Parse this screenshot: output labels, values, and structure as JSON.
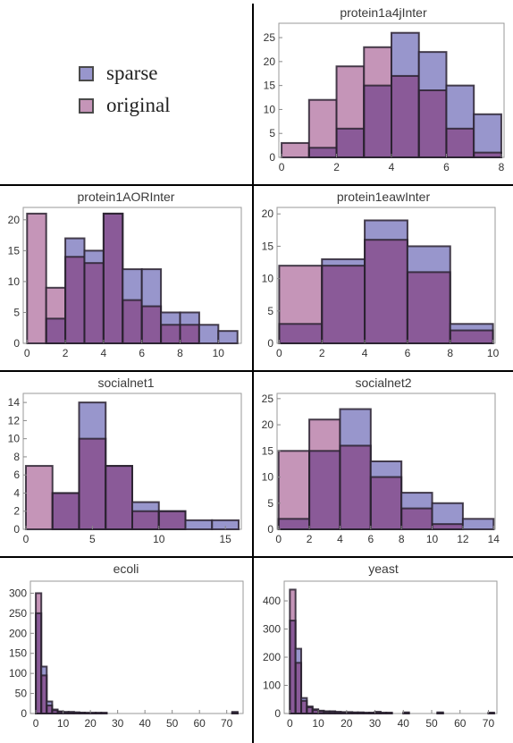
{
  "legend": [
    {
      "label": "sparse",
      "color": "#9896cc"
    },
    {
      "label": "original",
      "color": "#c595b8"
    }
  ],
  "colors": {
    "sparse": "#9896cc",
    "original": "#c595b8",
    "overlap": "#8a5a98",
    "edge": "#2a2230"
  },
  "chart_data": [
    {
      "type": "bar",
      "title": "protein1a4jInter",
      "bins": [
        [
          0,
          1
        ],
        [
          1,
          2
        ],
        [
          2,
          3
        ],
        [
          3,
          4
        ],
        [
          4,
          5
        ],
        [
          5,
          6
        ],
        [
          6,
          7
        ],
        [
          7,
          8
        ]
      ],
      "series": [
        {
          "name": "sparse",
          "values": [
            0,
            2,
            6,
            15,
            26,
            22,
            15,
            9
          ]
        },
        {
          "name": "original",
          "values": [
            3,
            12,
            19,
            23,
            17,
            14,
            6,
            1
          ]
        }
      ],
      "xlim": [
        -0.1,
        8.1
      ],
      "ylim": [
        0,
        28
      ],
      "xticks": [
        0,
        2,
        4,
        6,
        8
      ],
      "yticks": [
        0,
        5,
        10,
        15,
        20,
        25
      ]
    },
    {
      "type": "bar",
      "title": "protein1AORInter",
      "bins": [
        [
          0,
          1
        ],
        [
          1,
          2
        ],
        [
          2,
          3
        ],
        [
          3,
          4
        ],
        [
          4,
          5
        ],
        [
          5,
          6
        ],
        [
          6,
          7
        ],
        [
          7,
          8
        ],
        [
          8,
          9
        ],
        [
          9,
          10
        ],
        [
          10,
          11
        ]
      ],
      "series": [
        {
          "name": "sparse",
          "values": [
            0,
            4,
            17,
            15,
            21,
            12,
            12,
            5,
            5,
            3,
            2
          ]
        },
        {
          "name": "original",
          "values": [
            21,
            9,
            14,
            13,
            21,
            7,
            6,
            3,
            3,
            0,
            0
          ]
        }
      ],
      "xlim": [
        -0.2,
        11.2
      ],
      "ylim": [
        0,
        22
      ],
      "xticks": [
        0,
        2,
        4,
        6,
        8,
        10
      ],
      "yticks": [
        0,
        5,
        10,
        15,
        20
      ]
    },
    {
      "type": "bar",
      "title": "protein1eawInter",
      "bins": [
        [
          0,
          2
        ],
        [
          2,
          4
        ],
        [
          4,
          6
        ],
        [
          6,
          8
        ],
        [
          8,
          10
        ]
      ],
      "series": [
        {
          "name": "sparse",
          "values": [
            3,
            13,
            19,
            15,
            3
          ]
        },
        {
          "name": "original",
          "values": [
            12,
            12,
            16,
            11,
            2
          ]
        }
      ],
      "xlim": [
        -0.1,
        10.1
      ],
      "ylim": [
        0,
        21
      ],
      "xticks": [
        0,
        2,
        4,
        6,
        8,
        10
      ],
      "yticks": [
        0,
        5,
        10,
        15,
        20
      ]
    },
    {
      "type": "bar",
      "title": "socialnet1",
      "bins": [
        [
          0,
          2
        ],
        [
          2,
          4
        ],
        [
          4,
          6
        ],
        [
          6,
          8
        ],
        [
          8,
          10
        ],
        [
          10,
          12
        ],
        [
          12,
          14
        ],
        [
          14,
          16
        ]
      ],
      "series": [
        {
          "name": "sparse",
          "values": [
            0,
            4,
            14,
            7,
            3,
            2,
            1,
            1
          ]
        },
        {
          "name": "original",
          "values": [
            7,
            4,
            10,
            7,
            2,
            2,
            0,
            0
          ]
        }
      ],
      "xlim": [
        -0.2,
        16.2
      ],
      "ylim": [
        0,
        15
      ],
      "xticks": [
        0,
        5,
        10,
        15
      ],
      "yticks": [
        0,
        2,
        4,
        6,
        8,
        10,
        12,
        14
      ]
    },
    {
      "type": "bar",
      "title": "socialnet2",
      "bins": [
        [
          0,
          2
        ],
        [
          2,
          4
        ],
        [
          4,
          6
        ],
        [
          6,
          8
        ],
        [
          8,
          10
        ],
        [
          10,
          12
        ],
        [
          12,
          14
        ]
      ],
      "series": [
        {
          "name": "sparse",
          "values": [
            2,
            15,
            23,
            13,
            7,
            5,
            2
          ]
        },
        {
          "name": "original",
          "values": [
            15,
            21,
            16,
            10,
            4,
            1,
            0
          ]
        }
      ],
      "xlim": [
        -0.1,
        14.1
      ],
      "ylim": [
        0,
        26
      ],
      "xticks": [
        0,
        2,
        4,
        6,
        8,
        10,
        12,
        14
      ],
      "yticks": [
        0,
        5,
        10,
        15,
        20,
        25
      ]
    },
    {
      "type": "bar",
      "title": "ecoli",
      "bins": [
        [
          0,
          2
        ],
        [
          2,
          4
        ],
        [
          4,
          6
        ],
        [
          6,
          8
        ],
        [
          8,
          10
        ],
        [
          10,
          12
        ],
        [
          12,
          14
        ],
        [
          14,
          16
        ],
        [
          16,
          18
        ],
        [
          18,
          20
        ],
        [
          20,
          22
        ],
        [
          22,
          24
        ],
        [
          24,
          26
        ],
        [
          72,
          74
        ]
      ],
      "series": [
        {
          "name": "sparse",
          "values": [
            250,
            117,
            30,
            10,
            5,
            4,
            4,
            3,
            2,
            2,
            2,
            2,
            2,
            4
          ]
        },
        {
          "name": "original",
          "values": [
            300,
            95,
            20,
            8,
            5,
            3,
            3,
            2,
            2,
            1,
            1,
            1,
            1,
            2
          ]
        }
      ],
      "xlim": [
        -2,
        76
      ],
      "ylim": [
        0,
        330
      ],
      "xticks": [
        0,
        10,
        20,
        30,
        40,
        50,
        60,
        70
      ],
      "yticks": [
        0,
        50,
        100,
        150,
        200,
        250,
        300
      ]
    },
    {
      "type": "bar",
      "title": "yeast",
      "bins": [
        [
          0,
          2
        ],
        [
          2,
          4
        ],
        [
          4,
          6
        ],
        [
          6,
          8
        ],
        [
          8,
          10
        ],
        [
          10,
          12
        ],
        [
          12,
          14
        ],
        [
          14,
          16
        ],
        [
          16,
          18
        ],
        [
          18,
          20
        ],
        [
          20,
          22
        ],
        [
          22,
          24
        ],
        [
          24,
          26
        ],
        [
          26,
          28
        ],
        [
          28,
          30
        ],
        [
          30,
          32
        ],
        [
          32,
          34
        ],
        [
          34,
          36
        ],
        [
          40,
          42
        ],
        [
          52,
          54
        ],
        [
          70,
          72
        ]
      ],
      "series": [
        {
          "name": "sparse",
          "values": [
            330,
            230,
            55,
            25,
            15,
            10,
            8,
            8,
            6,
            5,
            5,
            4,
            4,
            3,
            3,
            6,
            3,
            3,
            4,
            4,
            3
          ]
        },
        {
          "name": "original",
          "values": [
            440,
            180,
            45,
            22,
            12,
            8,
            6,
            6,
            5,
            4,
            4,
            3,
            3,
            2,
            2,
            4,
            2,
            2,
            2,
            2,
            2
          ]
        }
      ],
      "xlim": [
        -2,
        73
      ],
      "ylim": [
        0,
        470
      ],
      "xticks": [
        0,
        10,
        20,
        30,
        40,
        50,
        60,
        70
      ],
      "yticks": [
        0,
        100,
        200,
        300,
        400
      ]
    }
  ]
}
